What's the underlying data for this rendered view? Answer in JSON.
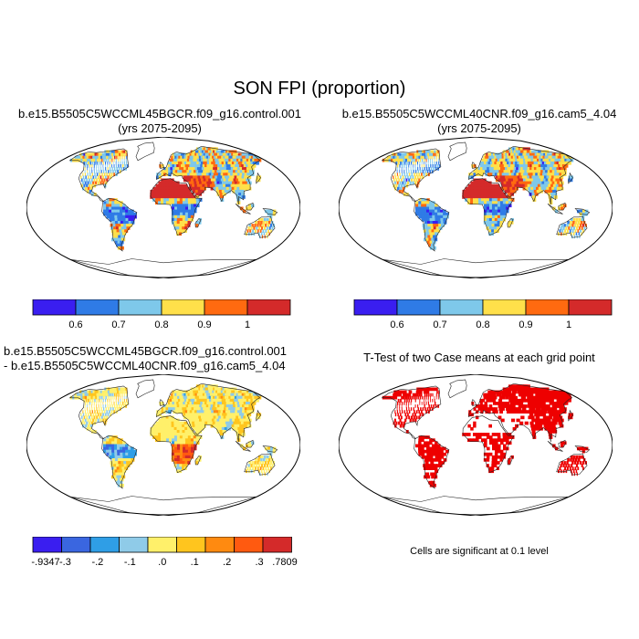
{
  "title": "SON FPI (proportion)",
  "panels": [
    {
      "title_line1": "b.e15.B5505C5WCCML45BGCR.f09_g16.control.001",
      "title_line2": "(yrs 2075-2095)",
      "palette": "ratio"
    },
    {
      "title_line1": "b.e15.B5505C5WCCML40CNR.f09_g16.cam5_4.04",
      "title_line2": "(yrs 2075-2095)",
      "palette": "ratio2"
    },
    {
      "title_line1": "b.e15.B5505C5WCCML45BGCR.f09_g16.control.001",
      "title_line2": "- b.e15.B5505C5WCCML40CNR.f09_g16.cam5_4.04",
      "palette": "diff"
    },
    {
      "title_line1": "T-Test of two Case means at each grid point",
      "note": "Cells are significant at 0.1 level",
      "palette": "sig"
    }
  ],
  "colorbars": {
    "ratio": {
      "colors": [
        "#3a1ef0",
        "#2f7be6",
        "#7ec8ea",
        "#ffe04a",
        "#ff6a10",
        "#d42a2a"
      ],
      "labels": [
        "0.6",
        "0.7",
        "0.8",
        "0.9",
        "1"
      ]
    },
    "diff": {
      "colors": [
        "#3a1ef0",
        "#3a66e0",
        "#2f9ee6",
        "#8fcbe8",
        "#fff06a",
        "#ffc51e",
        "#ff8a10",
        "#ff5a10",
        "#d42a2a"
      ],
      "labels": [
        "-.9347",
        "-.3",
        "-.2",
        "-.1",
        ".0",
        ".1",
        ".2",
        ".3",
        ".7809"
      ]
    }
  },
  "sig_color": "#ee0000"
}
